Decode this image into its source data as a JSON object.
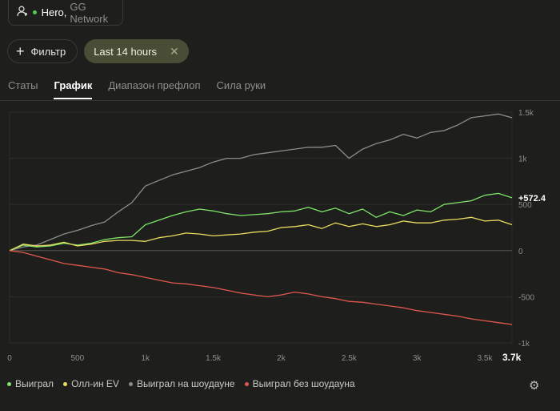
{
  "player": {
    "name": "Hero",
    "separator": ",",
    "network": "GG Network",
    "status_color": "#57c94f"
  },
  "filters": {
    "add_label": "Фильтр",
    "active_chip": "Last 14 hours",
    "close_icon": "✕"
  },
  "tabs": [
    {
      "label": "Статы",
      "active": false
    },
    {
      "label": "График",
      "active": true
    },
    {
      "label": "Диапазон префлоп",
      "active": false
    },
    {
      "label": "Сила руки",
      "active": false
    }
  ],
  "chart_data": {
    "type": "line",
    "x_label_end": "3.7k",
    "xlim": [
      0,
      3700
    ],
    "ylim": [
      -1000,
      1500
    ],
    "x_ticks": [
      {
        "v": 0,
        "label": "0"
      },
      {
        "v": 500,
        "label": "500"
      },
      {
        "v": 1000,
        "label": "1k"
      },
      {
        "v": 1500,
        "label": "1.5k"
      },
      {
        "v": 2000,
        "label": "2k"
      },
      {
        "v": 2500,
        "label": "2.5k"
      },
      {
        "v": 3000,
        "label": "3k"
      },
      {
        "v": 3500,
        "label": "3.5k"
      }
    ],
    "y_ticks": [
      {
        "v": 1500,
        "label": "1.5k"
      },
      {
        "v": 1000,
        "label": "1k"
      },
      {
        "v": 500,
        "label": "500"
      },
      {
        "v": 0,
        "label": "0"
      },
      {
        "v": -500,
        "label": "-500"
      },
      {
        "v": -1000,
        "label": "-1k"
      }
    ],
    "end_value_label": "+572.4",
    "series": [
      {
        "name": "Выиграл на шоудауне",
        "color": "#8c8c8c",
        "x": [
          0,
          100,
          200,
          300,
          400,
          500,
          600,
          700,
          800,
          900,
          1000,
          1100,
          1200,
          1300,
          1400,
          1500,
          1600,
          1700,
          1800,
          1900,
          2000,
          2100,
          2200,
          2300,
          2400,
          2500,
          2600,
          2700,
          2800,
          2900,
          3000,
          3100,
          3200,
          3300,
          3400,
          3500,
          3600,
          3700
        ],
        "y": [
          0,
          40,
          60,
          120,
          180,
          220,
          270,
          310,
          420,
          520,
          700,
          760,
          820,
          860,
          900,
          960,
          1000,
          1000,
          1040,
          1060,
          1080,
          1100,
          1120,
          1120,
          1140,
          1000,
          1100,
          1160,
          1200,
          1260,
          1220,
          1280,
          1300,
          1360,
          1440,
          1460,
          1480,
          1440
        ]
      },
      {
        "name": "Выиграл",
        "color": "#7fe36a",
        "x": [
          0,
          100,
          200,
          300,
          400,
          500,
          600,
          700,
          800,
          900,
          1000,
          1100,
          1200,
          1300,
          1400,
          1500,
          1600,
          1700,
          1800,
          1900,
          2000,
          2100,
          2200,
          2300,
          2400,
          2500,
          2600,
          2700,
          2800,
          2900,
          3000,
          3100,
          3200,
          3300,
          3400,
          3500,
          3600,
          3700
        ],
        "y": [
          0,
          60,
          40,
          50,
          80,
          60,
          80,
          120,
          140,
          150,
          280,
          330,
          380,
          420,
          450,
          430,
          400,
          380,
          390,
          400,
          420,
          430,
          470,
          420,
          460,
          400,
          450,
          360,
          420,
          380,
          440,
          420,
          500,
          520,
          540,
          600,
          620,
          572
        ]
      },
      {
        "name": "Олл-ин EV",
        "color": "#e9dc5f",
        "x": [
          0,
          100,
          200,
          300,
          400,
          500,
          600,
          700,
          800,
          900,
          1000,
          1100,
          1200,
          1300,
          1400,
          1500,
          1600,
          1700,
          1800,
          1900,
          2000,
          2100,
          2200,
          2300,
          2400,
          2500,
          2600,
          2700,
          2800,
          2900,
          3000,
          3100,
          3200,
          3300,
          3400,
          3500,
          3600,
          3700
        ],
        "y": [
          0,
          70,
          50,
          60,
          90,
          50,
          70,
          100,
          110,
          110,
          100,
          140,
          160,
          190,
          180,
          160,
          170,
          180,
          200,
          210,
          250,
          260,
          280,
          240,
          300,
          260,
          290,
          260,
          280,
          320,
          300,
          300,
          330,
          340,
          360,
          320,
          330,
          280
        ]
      },
      {
        "name": "Выиграл без шоудауна",
        "color": "#e0574e",
        "x": [
          0,
          100,
          200,
          300,
          400,
          500,
          600,
          700,
          800,
          900,
          1000,
          1100,
          1200,
          1300,
          1400,
          1500,
          1600,
          1700,
          1800,
          1900,
          2000,
          2100,
          2200,
          2300,
          2400,
          2500,
          2600,
          2700,
          2800,
          2900,
          3000,
          3100,
          3200,
          3300,
          3400,
          3500,
          3600,
          3700
        ],
        "y": [
          0,
          -20,
          -60,
          -100,
          -140,
          -160,
          -180,
          -200,
          -240,
          -260,
          -290,
          -320,
          -350,
          -360,
          -380,
          -400,
          -430,
          -460,
          -480,
          -500,
          -480,
          -450,
          -470,
          -500,
          -520,
          -550,
          -560,
          -580,
          -600,
          -620,
          -650,
          -670,
          -690,
          -710,
          -740,
          -760,
          -780,
          -800
        ]
      }
    ]
  },
  "legend": [
    {
      "label": "Выиграл",
      "color": "#7fe36a"
    },
    {
      "label": "Олл-ин EV",
      "color": "#e9dc5f"
    },
    {
      "label": "Выиграл на шоудауне",
      "color": "#8c8c8c"
    },
    {
      "label": "Выиграл без шоудауна",
      "color": "#e0574e"
    }
  ],
  "settings_icon": "⚙"
}
